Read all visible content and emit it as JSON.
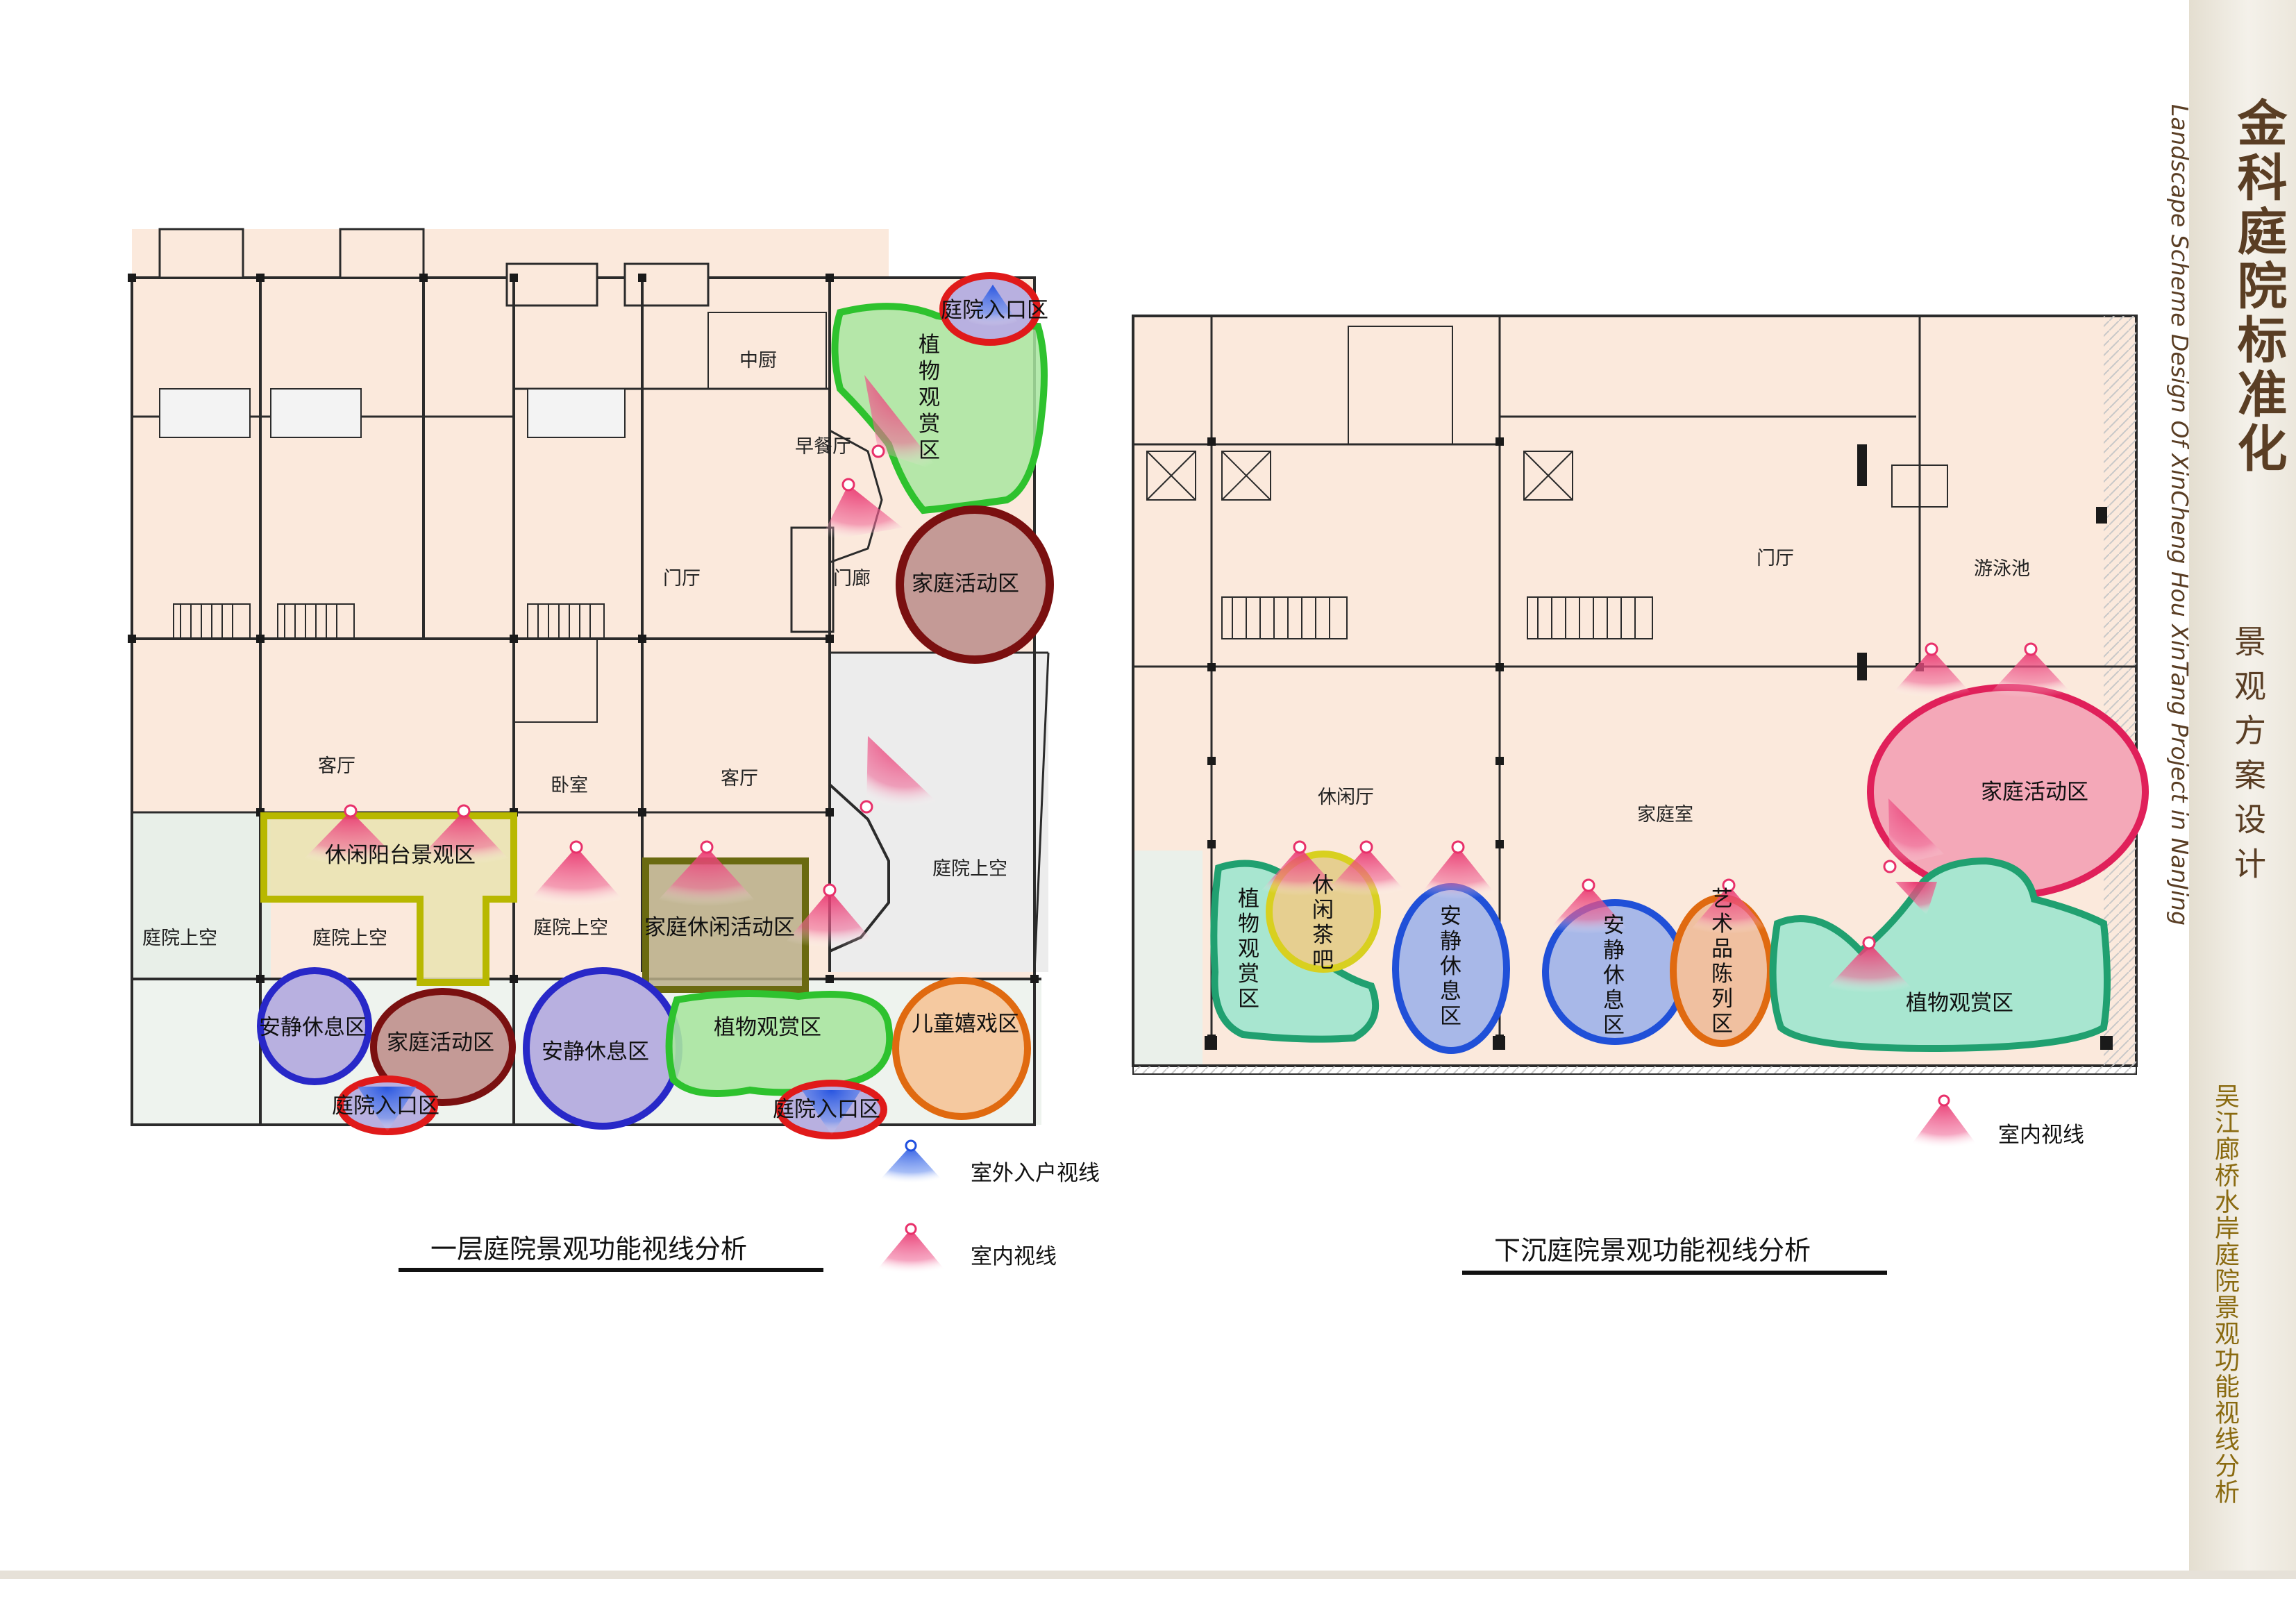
{
  "header": {
    "brand_title": "金科庭院标准化",
    "scheme_title": "景观方案设计",
    "english_title": "Landscape Scheme Design Of XinCheng Hou XinTang Project in NanJing",
    "project_title": "吴江廊桥水岸庭院景观功能视线分析"
  },
  "plan1": {
    "caption": "一层庭院景观功能视线分析",
    "rooms": {
      "zhongchu": "中厨",
      "zaocanting": "早餐厅",
      "menting": "门厅",
      "menlang": "门廊",
      "keting_a": "客厅",
      "woshi": "卧室",
      "keting_b": "客厅",
      "tingyuan_a": "庭院上空",
      "tingyuan_b": "庭院上空",
      "tingyuan_c": "庭院上空",
      "tingyuan_d": "庭院上空"
    },
    "zones": {
      "entry_top": "庭院入口区",
      "plant_view_v": "植物观赏区",
      "family_act_big": "家庭活动区",
      "balcony": "休闲阳台景观区",
      "leisure_act": "家庭休闲活动区",
      "quiet_a": "安静休息区",
      "family_act_small": "家庭活动区",
      "quiet_b": "安静休息区",
      "plant_view_h": "植物观赏区",
      "kids": "儿童嬉戏区",
      "entry_left": "庭院入口区",
      "entry_mid": "庭院入口区"
    },
    "legend": {
      "outdoor": "室外入户视线",
      "indoor": "室内视线"
    }
  },
  "plan2": {
    "caption": "下沉庭院景观功能视线分析",
    "rooms": {
      "menting": "门厅",
      "youyongchi": "游泳池",
      "xiuxianting": "休闲厅",
      "jiatingshi": "家庭室"
    },
    "zones": {
      "family_act": "家庭活动区",
      "plant_view_v": "植物观赏区",
      "tea": "休闲茶吧",
      "quiet_a": "安静休息区",
      "quiet_b": "安静休息区",
      "art": "艺术品陈列区",
      "plant_view_h": "植物观赏区"
    },
    "legend": {
      "indoor": "室内视线"
    }
  },
  "colors": {
    "floor": "#fbe9dc",
    "wall": "#2b2b2b",
    "view_red": "#e8306a",
    "view_blue": "#3060e0",
    "zone_green": "#2ec22e",
    "zone_red": "#7a1010",
    "zone_blue": "#2828c8",
    "zone_yellow": "#b8b800",
    "zone_orange": "#e06a10",
    "zone_olive": "#6a6a10",
    "zone_teal": "#20a070",
    "zone_crimson": "#e0205a"
  }
}
